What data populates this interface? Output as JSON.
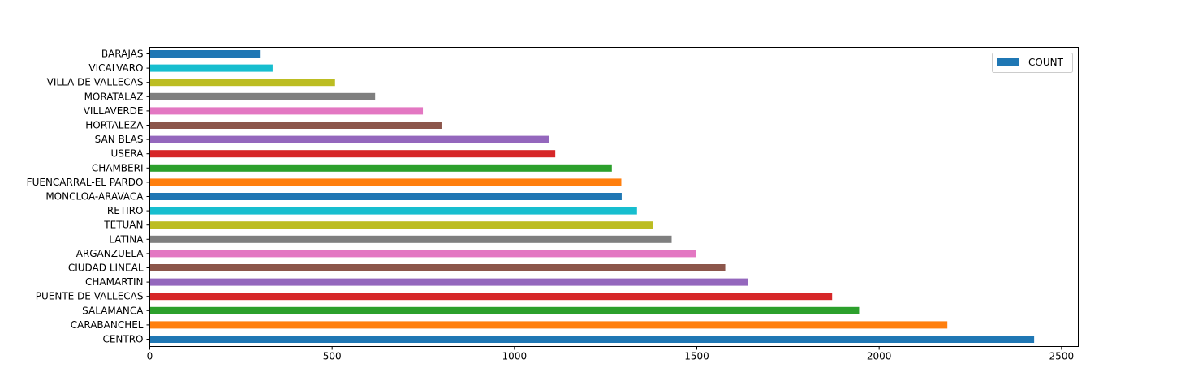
{
  "chart_data": {
    "type": "bar",
    "orientation": "horizontal",
    "categories": [
      "CENTRO",
      "CARABANCHEL",
      "SALAMANCA",
      "PUENTE DE VALLECAS",
      "CHAMARTIN",
      "CIUDAD LINEAL",
      "ARGANZUELA",
      "LATINA",
      "TETUAN",
      "RETIRO",
      "MONCLOA-ARAVACA",
      "FUENCARRAL-EL PARDO",
      "CHAMBERI",
      "USERA",
      "SAN BLAS",
      "HORTALEZA",
      "VILLAVERDE",
      "MORATALAZ",
      "VILLA DE VALLECAS",
      "VICALVARO",
      "BARAJAS"
    ],
    "series": [
      {
        "name": "COUNT",
        "values": [
          2425,
          2187,
          1945,
          1871,
          1641,
          1578,
          1498,
          1431,
          1379,
          1336,
          1294,
          1293,
          1267,
          1112,
          1096,
          800,
          749,
          618,
          508,
          337,
          302
        ]
      }
    ],
    "bar_colors": [
      "#1f77b4",
      "#ff7f0e",
      "#2ca02c",
      "#d62728",
      "#9467bd",
      "#8c564b",
      "#e377c2",
      "#7f7f7f",
      "#bcbd22",
      "#17becf"
    ],
    "legend_color": "#1f77b4",
    "xlim": [
      0,
      2546
    ],
    "xticks": [
      0,
      500,
      1000,
      1500,
      2000,
      2500
    ],
    "title": "",
    "xlabel": "",
    "ylabel": "",
    "grid": false,
    "legend": {
      "position": "top-right",
      "entries": [
        "COUNT"
      ]
    }
  }
}
